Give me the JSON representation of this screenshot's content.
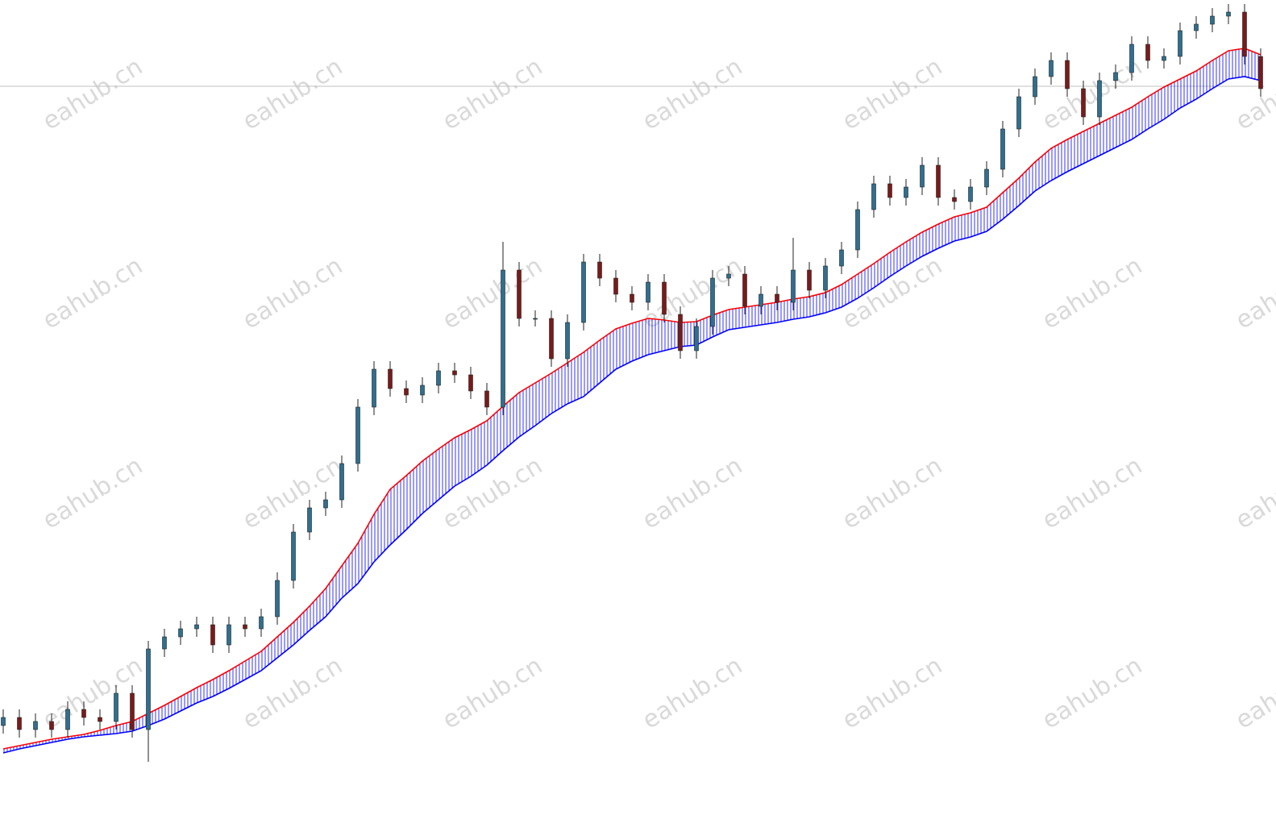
{
  "chart_data": {
    "type": "candlestick",
    "ylim": [
      0,
      1011
    ],
    "up_color": "#2f6f8f",
    "down_color": "#7a1a1a",
    "price_line": 904,
    "watermark": "eahub.cn",
    "open": [
      111,
      121,
      106,
      116,
      106,
      131,
      121,
      116,
      151,
      106,
      206,
      221,
      231,
      236,
      211,
      236,
      231,
      246,
      291,
      351,
      381,
      391,
      436,
      506,
      553,
      529,
      521,
      533,
      551,
      546,
      526,
      506,
      676,
      616,
      616,
      566,
      611,
      686,
      666,
      646,
      636,
      661,
      621,
      576,
      606,
      666,
      671,
      631,
      646,
      636,
      676,
      651,
      681,
      701,
      751,
      783,
      766,
      779,
      806,
      766,
      761,
      779,
      801,
      851,
      891,
      916,
      936,
      901,
      866,
      911,
      921,
      956,
      936,
      941,
      973,
      981,
      991,
      996,
      941
    ],
    "high": [
      131,
      131,
      126,
      126,
      141,
      141,
      131,
      161,
      161,
      216,
      231,
      241,
      246,
      246,
      246,
      246,
      256,
      301,
      361,
      391,
      401,
      446,
      516,
      563,
      563,
      539,
      543,
      561,
      561,
      556,
      536,
      711,
      686,
      626,
      626,
      621,
      696,
      696,
      676,
      656,
      671,
      671,
      631,
      616,
      676,
      681,
      681,
      656,
      656,
      716,
      686,
      691,
      711,
      761,
      793,
      793,
      789,
      816,
      816,
      776,
      789,
      811,
      861,
      901,
      926,
      946,
      946,
      911,
      921,
      931,
      966,
      966,
      951,
      983,
      991,
      1001,
      1006,
      1006,
      951
    ],
    "low": [
      101,
      96,
      96,
      96,
      96,
      111,
      106,
      106,
      96,
      66,
      196,
      211,
      221,
      201,
      201,
      221,
      221,
      236,
      281,
      341,
      371,
      381,
      426,
      496,
      519,
      511,
      511,
      523,
      536,
      516,
      496,
      496,
      606,
      606,
      556,
      556,
      601,
      656,
      636,
      626,
      626,
      611,
      566,
      566,
      596,
      656,
      621,
      621,
      626,
      626,
      641,
      641,
      671,
      691,
      741,
      756,
      756,
      769,
      756,
      751,
      751,
      769,
      791,
      841,
      881,
      906,
      891,
      856,
      856,
      901,
      911,
      926,
      926,
      931,
      963,
      971,
      981,
      931,
      891
    ],
    "close": [
      121,
      106,
      116,
      106,
      131,
      121,
      116,
      151,
      106,
      206,
      221,
      231,
      236,
      211,
      236,
      231,
      246,
      291,
      351,
      381,
      391,
      436,
      506,
      553,
      529,
      521,
      533,
      551,
      546,
      526,
      506,
      676,
      616,
      616,
      566,
      611,
      686,
      666,
      646,
      636,
      661,
      621,
      576,
      606,
      666,
      671,
      631,
      646,
      636,
      676,
      651,
      681,
      701,
      751,
      783,
      766,
      779,
      806,
      766,
      761,
      779,
      801,
      851,
      891,
      916,
      936,
      901,
      866,
      911,
      921,
      956,
      936,
      941,
      973,
      981,
      991,
      996,
      941,
      901
    ],
    "ma_lines": [
      {
        "color": "#ff0000",
        "values": [
          82,
          86,
          90,
          94,
          97,
          100,
          105,
          111,
          116,
          126,
          136,
          147,
          158,
          168,
          179,
          191,
          203,
          221,
          239,
          259,
          281,
          309,
          337,
          373,
          404,
          421,
          439,
          454,
          468,
          478,
          489,
          507,
          524,
          536,
          548,
          561,
          574,
          589,
          603,
          610,
          616,
          614,
          611,
          612,
          620,
          627,
          630,
          633,
          636,
          640,
          643,
          648,
          658,
          671,
          684,
          698,
          711,
          723,
          733,
          742,
          747,
          754,
          772,
          790,
          810,
          827,
          838,
          848,
          858,
          868,
          878,
          891,
          903,
          913,
          923,
          936,
          948,
          951,
          943
        ]
      },
      {
        "color": "#0000ff",
        "values": [
          77,
          82,
          86,
          90,
          94,
          97,
          99,
          101,
          104,
          111,
          119,
          129,
          139,
          147,
          157,
          168,
          179,
          195,
          211,
          229,
          246,
          269,
          287,
          314,
          335,
          354,
          374,
          391,
          408,
          420,
          434,
          452,
          469,
          483,
          498,
          510,
          519,
          536,
          553,
          563,
          571,
          576,
          581,
          583,
          593,
          602,
          605,
          608,
          611,
          615,
          618,
          623,
          630,
          641,
          654,
          668,
          681,
          693,
          703,
          712,
          717,
          724,
          739,
          756,
          774,
          787,
          798,
          808,
          818,
          828,
          838,
          851,
          863,
          877,
          888,
          901,
          913,
          916,
          911
        ]
      }
    ]
  }
}
